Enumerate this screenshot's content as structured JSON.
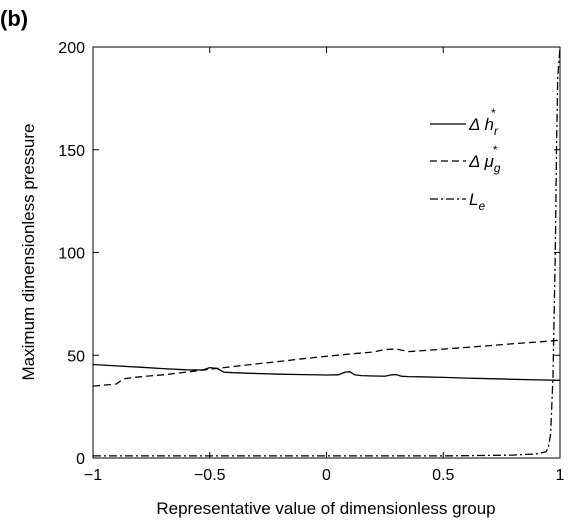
{
  "panel_label": "(b)",
  "chart_data": {
    "type": "line",
    "xlabel": "Representative value of dimensionless group",
    "ylabel": "Maximum dimensionless pressure",
    "xlim": [
      -1,
      1
    ],
    "ylim": [
      0,
      200
    ],
    "xticks": [
      -1,
      -0.5,
      0,
      0.5,
      1
    ],
    "xtick_labels": [
      "−1",
      "−0.5",
      "0",
      "0.5",
      "1"
    ],
    "yticks": [
      0,
      50,
      100,
      150,
      200
    ],
    "ytick_labels": [
      "0",
      "50",
      "100",
      "150",
      "200"
    ],
    "grid": false,
    "legend_placement": "top-right",
    "series": [
      {
        "legend_main": "Δ h",
        "legend_sub": "r",
        "legend_sup": "*",
        "dash": "solid",
        "x": [
          -1,
          -0.9,
          -0.8,
          -0.7,
          -0.6,
          -0.53,
          -0.5,
          -0.47,
          -0.44,
          -0.4,
          -0.3,
          -0.2,
          -0.1,
          0,
          0.05,
          0.08,
          0.1,
          0.12,
          0.15,
          0.2,
          0.25,
          0.28,
          0.3,
          0.32,
          0.35,
          0.4,
          0.5,
          0.6,
          0.7,
          0.8,
          0.9,
          1
        ],
        "y": [
          45.5,
          44.8,
          44.2,
          43.5,
          42.9,
          42.8,
          44,
          43.6,
          41.8,
          41.5,
          41.1,
          40.8,
          40.6,
          40.4,
          40.5,
          41.8,
          42,
          40.5,
          40.1,
          39.9,
          39.8,
          40.5,
          40.6,
          39.8,
          39.6,
          39.5,
          39.2,
          38.9,
          38.6,
          38.3,
          38,
          37.8
        ]
      },
      {
        "legend_main": "Δ μ",
        "legend_sub": "g",
        "legend_sup": "*",
        "dash": "dashed",
        "x": [
          -1,
          -0.9,
          -0.87,
          -0.8,
          -0.7,
          -0.6,
          -0.5,
          -0.4,
          -0.3,
          -0.2,
          -0.1,
          0,
          0.1,
          0.2,
          0.25,
          0.3,
          0.35,
          0.4,
          0.5,
          0.6,
          0.7,
          0.8,
          0.9,
          1
        ],
        "y": [
          35,
          36,
          38.5,
          39.5,
          40.5,
          41.8,
          43.2,
          44.5,
          45.8,
          47,
          48.3,
          49.5,
          50.6,
          51.6,
          52.8,
          53,
          51.8,
          52.1,
          53,
          53.8,
          54.7,
          55.6,
          56.4,
          57.3
        ]
      },
      {
        "legend_main": "L",
        "legend_sub": "e",
        "legend_sup": "",
        "dash": "dashdot",
        "x": [
          -1,
          -0.5,
          0,
          0.5,
          0.8,
          0.9,
          0.94,
          0.95,
          0.96,
          0.97,
          0.98,
          0.985,
          0.99,
          1
        ],
        "y": [
          1,
          1,
          1,
          1,
          1.4,
          2,
          3,
          5,
          12,
          40,
          100,
          150,
          185,
          200
        ]
      }
    ]
  }
}
